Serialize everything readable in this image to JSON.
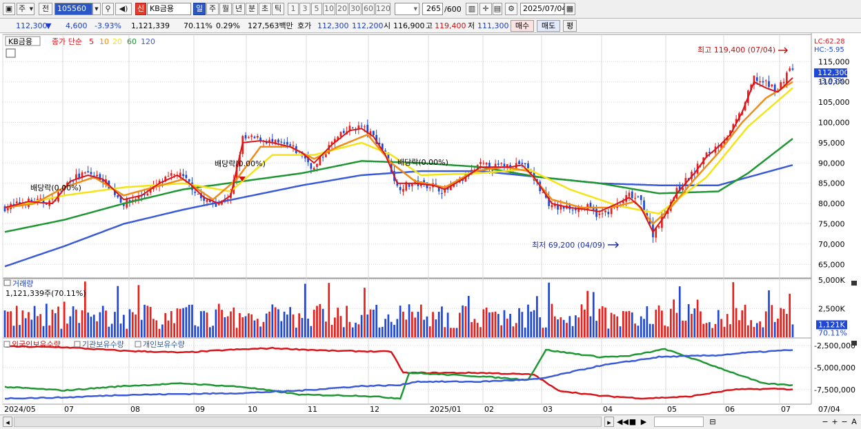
{
  "toolbar": {
    "mode_select": "주",
    "prev_button": "전",
    "stock_code": "105560",
    "credit_badge": "신",
    "stock_name": "KB금용",
    "periods": [
      "일",
      "주",
      "월",
      "년",
      "분",
      "초",
      "틱"
    ],
    "intervals": [
      "1",
      "3",
      "5",
      "10",
      "20",
      "30",
      "60",
      "120"
    ],
    "count": "265",
    "count_max": "/600",
    "date": "2025/07/04"
  },
  "quote": {
    "price": "112,300",
    "arrow": "▼",
    "change": "4,600",
    "change_pct": "-3.93%",
    "volume": "1,121,339",
    "vol_ratio": "70.11%",
    "turnover": "0.29%",
    "amount": "127,563백만",
    "ask_label": "호가",
    "ask": "112,300",
    "bid": "112,200",
    "open_label": "시",
    "open": "116,900",
    "high_label": "고",
    "high": "119,400",
    "low_label": "저",
    "low": "111,300",
    "buy_button": "매수",
    "sell_button": "매도",
    "avg_button": "평"
  },
  "colors": {
    "up": "#e8201c",
    "down": "#1f47d6",
    "ma5": "#d6141a",
    "ma10": "#f08c14",
    "ma20": "#f5e414",
    "ma60": "#1e9632",
    "ma120": "#3a5ad8",
    "grid": "#d8d8d8"
  },
  "legend": {
    "name": "KB금융",
    "price_label": "종가 단순",
    "periods": [
      "5",
      "10",
      "20",
      "60",
      "120"
    ]
  },
  "price_panel": {
    "lc": "LC:62.28",
    "hc": "HC:-5.95",
    "current_tag": "112,300",
    "current_pct": "-3.93%",
    "high_note": "최고 119,400 (07/04)",
    "low_note": "최저 69,200 (04/09)",
    "div_labels": [
      "배당락(0.00%)",
      "배당락(0.00%)",
      "배당락(0.00%)"
    ]
  },
  "volume_panel": {
    "title": "거래량",
    "info": "1,121,339주(70.11%)",
    "current_tag": "1,121K",
    "current_pct": "70.11%"
  },
  "holding_panel": {
    "legend": [
      "외국인보유수량",
      "기관보유수량",
      "개인보유수량"
    ]
  },
  "bottom": {
    "last_date": "07/04"
  },
  "chart_data": [
    {
      "type": "candlestick",
      "title": "KB금융",
      "ylim": [
        62000,
        121000
      ],
      "y_ticks": [
        "115,000",
        "110,000",
        "105,000",
        "100,000",
        "95,000",
        "90,000",
        "85,000",
        "80,000",
        "75,000",
        "70,000",
        "65,000"
      ],
      "x_ticks": [
        "2024/05",
        "07",
        "08",
        "09",
        "10",
        "11",
        "12",
        "2025/01",
        "02",
        "03",
        "04",
        "05",
        "06",
        "07"
      ],
      "close_path": [
        [
          0,
          79000
        ],
        [
          8,
          80500
        ],
        [
          16,
          80500
        ],
        [
          22,
          86000
        ],
        [
          28,
          87500
        ],
        [
          33,
          86000
        ],
        [
          40,
          80000
        ],
        [
          46,
          82000
        ],
        [
          52,
          85000
        ],
        [
          58,
          87500
        ],
        [
          62,
          85000
        ],
        [
          67,
          80500
        ],
        [
          72,
          80000
        ],
        [
          76,
          82000
        ],
        [
          80,
          96000
        ],
        [
          86,
          96000
        ],
        [
          90,
          95000
        ],
        [
          96,
          94000
        ],
        [
          100,
          92000
        ],
        [
          104,
          88500
        ],
        [
          110,
          95000
        ],
        [
          116,
          98500
        ],
        [
          120,
          99000
        ],
        [
          124,
          96500
        ],
        [
          128,
          92500
        ],
        [
          132,
          84000
        ],
        [
          138,
          85000
        ],
        [
          144,
          84500
        ],
        [
          148,
          83000
        ],
        [
          154,
          86000
        ],
        [
          160,
          89500
        ],
        [
          164,
          89000
        ],
        [
          170,
          89500
        ],
        [
          174,
          90000
        ],
        [
          178,
          86000
        ],
        [
          184,
          79000
        ],
        [
          190,
          79000
        ],
        [
          196,
          79000
        ],
        [
          200,
          77000
        ],
        [
          206,
          79500
        ],
        [
          210,
          82000
        ],
        [
          214,
          80500
        ],
        [
          218,
          72500
        ],
        [
          222,
          78000
        ],
        [
          226,
          83000
        ],
        [
          232,
          88000
        ],
        [
          236,
          92000
        ],
        [
          240,
          94500
        ],
        [
          244,
          97500
        ],
        [
          248,
          103000
        ],
        [
          252,
          111000
        ],
        [
          256,
          109500
        ],
        [
          260,
          108000
        ],
        [
          264,
          113500
        ],
        [
          265,
          112300
        ]
      ],
      "ma_paths": {
        "ma5": [
          [
            0,
            79000
          ],
          [
            8,
            80500
          ],
          [
            16,
            80000
          ],
          [
            22,
            85500
          ],
          [
            28,
            87000
          ],
          [
            33,
            86000
          ],
          [
            40,
            81000
          ],
          [
            46,
            82000
          ],
          [
            52,
            85000
          ],
          [
            58,
            87000
          ],
          [
            62,
            85000
          ],
          [
            67,
            81500
          ],
          [
            72,
            80000
          ],
          [
            76,
            82000
          ],
          [
            80,
            95000
          ],
          [
            86,
            95500
          ],
          [
            90,
            95000
          ],
          [
            96,
            94000
          ],
          [
            100,
            92500
          ],
          [
            104,
            90000
          ],
          [
            110,
            94500
          ],
          [
            116,
            98000
          ],
          [
            120,
            98500
          ],
          [
            124,
            96500
          ],
          [
            128,
            92000
          ],
          [
            132,
            85000
          ],
          [
            138,
            85000
          ],
          [
            144,
            84500
          ],
          [
            148,
            83500
          ],
          [
            154,
            86000
          ],
          [
            160,
            89000
          ],
          [
            164,
            89000
          ],
          [
            170,
            89000
          ],
          [
            174,
            89500
          ],
          [
            178,
            86500
          ],
          [
            184,
            80000
          ],
          [
            190,
            79000
          ],
          [
            196,
            78500
          ],
          [
            200,
            78000
          ],
          [
            206,
            80000
          ],
          [
            210,
            81500
          ],
          [
            214,
            79000
          ],
          [
            218,
            73000
          ],
          [
            222,
            77000
          ],
          [
            226,
            82500
          ],
          [
            232,
            87500
          ],
          [
            236,
            91500
          ],
          [
            240,
            94000
          ],
          [
            244,
            97000
          ],
          [
            248,
            102500
          ],
          [
            252,
            110000
          ],
          [
            256,
            108500
          ],
          [
            260,
            107500
          ],
          [
            265,
            111000
          ]
        ],
        "ma10": [
          [
            0,
            79000
          ],
          [
            10,
            80000
          ],
          [
            20,
            84000
          ],
          [
            30,
            86500
          ],
          [
            40,
            82000
          ],
          [
            50,
            84000
          ],
          [
            60,
            86000
          ],
          [
            70,
            81000
          ],
          [
            78,
            86000
          ],
          [
            86,
            94000
          ],
          [
            96,
            94000
          ],
          [
            104,
            91000
          ],
          [
            112,
            94000
          ],
          [
            122,
            97000
          ],
          [
            130,
            90000
          ],
          [
            138,
            85500
          ],
          [
            148,
            84000
          ],
          [
            158,
            88000
          ],
          [
            168,
            89000
          ],
          [
            176,
            88000
          ],
          [
            184,
            81000
          ],
          [
            194,
            79000
          ],
          [
            204,
            79000
          ],
          [
            212,
            80500
          ],
          [
            218,
            75000
          ],
          [
            224,
            79000
          ],
          [
            232,
            86000
          ],
          [
            240,
            92500
          ],
          [
            248,
            100000
          ],
          [
            256,
            106000
          ],
          [
            265,
            110000
          ]
        ],
        "ma20": [
          [
            0,
            79000
          ],
          [
            20,
            82000
          ],
          [
            40,
            84000
          ],
          [
            60,
            85000
          ],
          [
            76,
            83000
          ],
          [
            90,
            92000
          ],
          [
            104,
            92000
          ],
          [
            120,
            95000
          ],
          [
            130,
            92000
          ],
          [
            140,
            87000
          ],
          [
            160,
            87500
          ],
          [
            176,
            88500
          ],
          [
            190,
            83500
          ],
          [
            206,
            79500
          ],
          [
            220,
            77500
          ],
          [
            236,
            86500
          ],
          [
            250,
            99000
          ],
          [
            265,
            108500
          ]
        ],
        "ma60": [
          [
            0,
            73000
          ],
          [
            20,
            76000
          ],
          [
            40,
            80000
          ],
          [
            60,
            83500
          ],
          [
            80,
            85500
          ],
          [
            100,
            87500
          ],
          [
            120,
            90500
          ],
          [
            140,
            90000
          ],
          [
            160,
            89000
          ],
          [
            180,
            86500
          ],
          [
            200,
            85000
          ],
          [
            220,
            82500
          ],
          [
            240,
            83000
          ],
          [
            250,
            87500
          ],
          [
            265,
            96000
          ]
        ],
        "ma120": [
          [
            0,
            64500
          ],
          [
            20,
            69500
          ],
          [
            40,
            75000
          ],
          [
            60,
            78500
          ],
          [
            80,
            81500
          ],
          [
            100,
            84500
          ],
          [
            120,
            87000
          ],
          [
            140,
            88000
          ],
          [
            160,
            88000
          ],
          [
            180,
            86500
          ],
          [
            200,
            85000
          ],
          [
            220,
            84500
          ],
          [
            240,
            84500
          ],
          [
            265,
            89500
          ]
        ]
      }
    },
    {
      "type": "bar",
      "title": "거래량",
      "ylim": [
        0,
        5000000
      ],
      "y_ticks": [
        "5,000K",
        "2,500K"
      ],
      "max_volume": 4900000,
      "last_volume": 1121339
    },
    {
      "type": "line",
      "title": "보유수량",
      "ylim": [
        -9000000,
        -1800000
      ],
      "y_ticks": [
        "-2,500,000",
        "-5,000,000",
        "-7,500,000"
      ],
      "series": [
        {
          "name": "외국인보유수량",
          "points": [
            [
              0,
              -2600000
            ],
            [
              20,
              -2700000
            ],
            [
              40,
              -3100000
            ],
            [
              60,
              -3300000
            ],
            [
              75,
              -3000000
            ],
            [
              90,
              -2800000
            ],
            [
              110,
              -3100000
            ],
            [
              130,
              -3200000
            ],
            [
              134,
              -5600000
            ],
            [
              160,
              -5600000
            ],
            [
              178,
              -5800000
            ],
            [
              186,
              -7600000
            ],
            [
              200,
              -8200000
            ],
            [
              215,
              -8500000
            ],
            [
              230,
              -8300000
            ],
            [
              245,
              -7500000
            ],
            [
              260,
              -7400000
            ],
            [
              265,
              -7500000
            ]
          ]
        },
        {
          "name": "기관보유수량",
          "points": [
            [
              0,
              -7200000
            ],
            [
              20,
              -7600000
            ],
            [
              40,
              -7100000
            ],
            [
              60,
              -6800000
            ],
            [
              80,
              -7200000
            ],
            [
              100,
              -8100000
            ],
            [
              120,
              -8200000
            ],
            [
              133,
              -8500000
            ],
            [
              136,
              -5600000
            ],
            [
              160,
              -6000000
            ],
            [
              176,
              -6400000
            ],
            [
              182,
              -3000000
            ],
            [
              200,
              -3800000
            ],
            [
              210,
              -3700000
            ],
            [
              222,
              -2900000
            ],
            [
              240,
              -5000000
            ],
            [
              255,
              -6800000
            ],
            [
              265,
              -7000000
            ]
          ]
        },
        {
          "name": "개인보유수량",
          "points": [
            [
              0,
              -8500000
            ],
            [
              20,
              -8400000
            ],
            [
              40,
              -8100000
            ],
            [
              60,
              -8000000
            ],
            [
              80,
              -7900000
            ],
            [
              100,
              -7600000
            ],
            [
              120,
              -7100000
            ],
            [
              133,
              -7000000
            ],
            [
              138,
              -6600000
            ],
            [
              160,
              -6600000
            ],
            [
              180,
              -6300000
            ],
            [
              200,
              -4800000
            ],
            [
              220,
              -3800000
            ],
            [
              240,
              -3600000
            ],
            [
              250,
              -3300000
            ],
            [
              265,
              -3000000
            ]
          ]
        }
      ]
    }
  ]
}
